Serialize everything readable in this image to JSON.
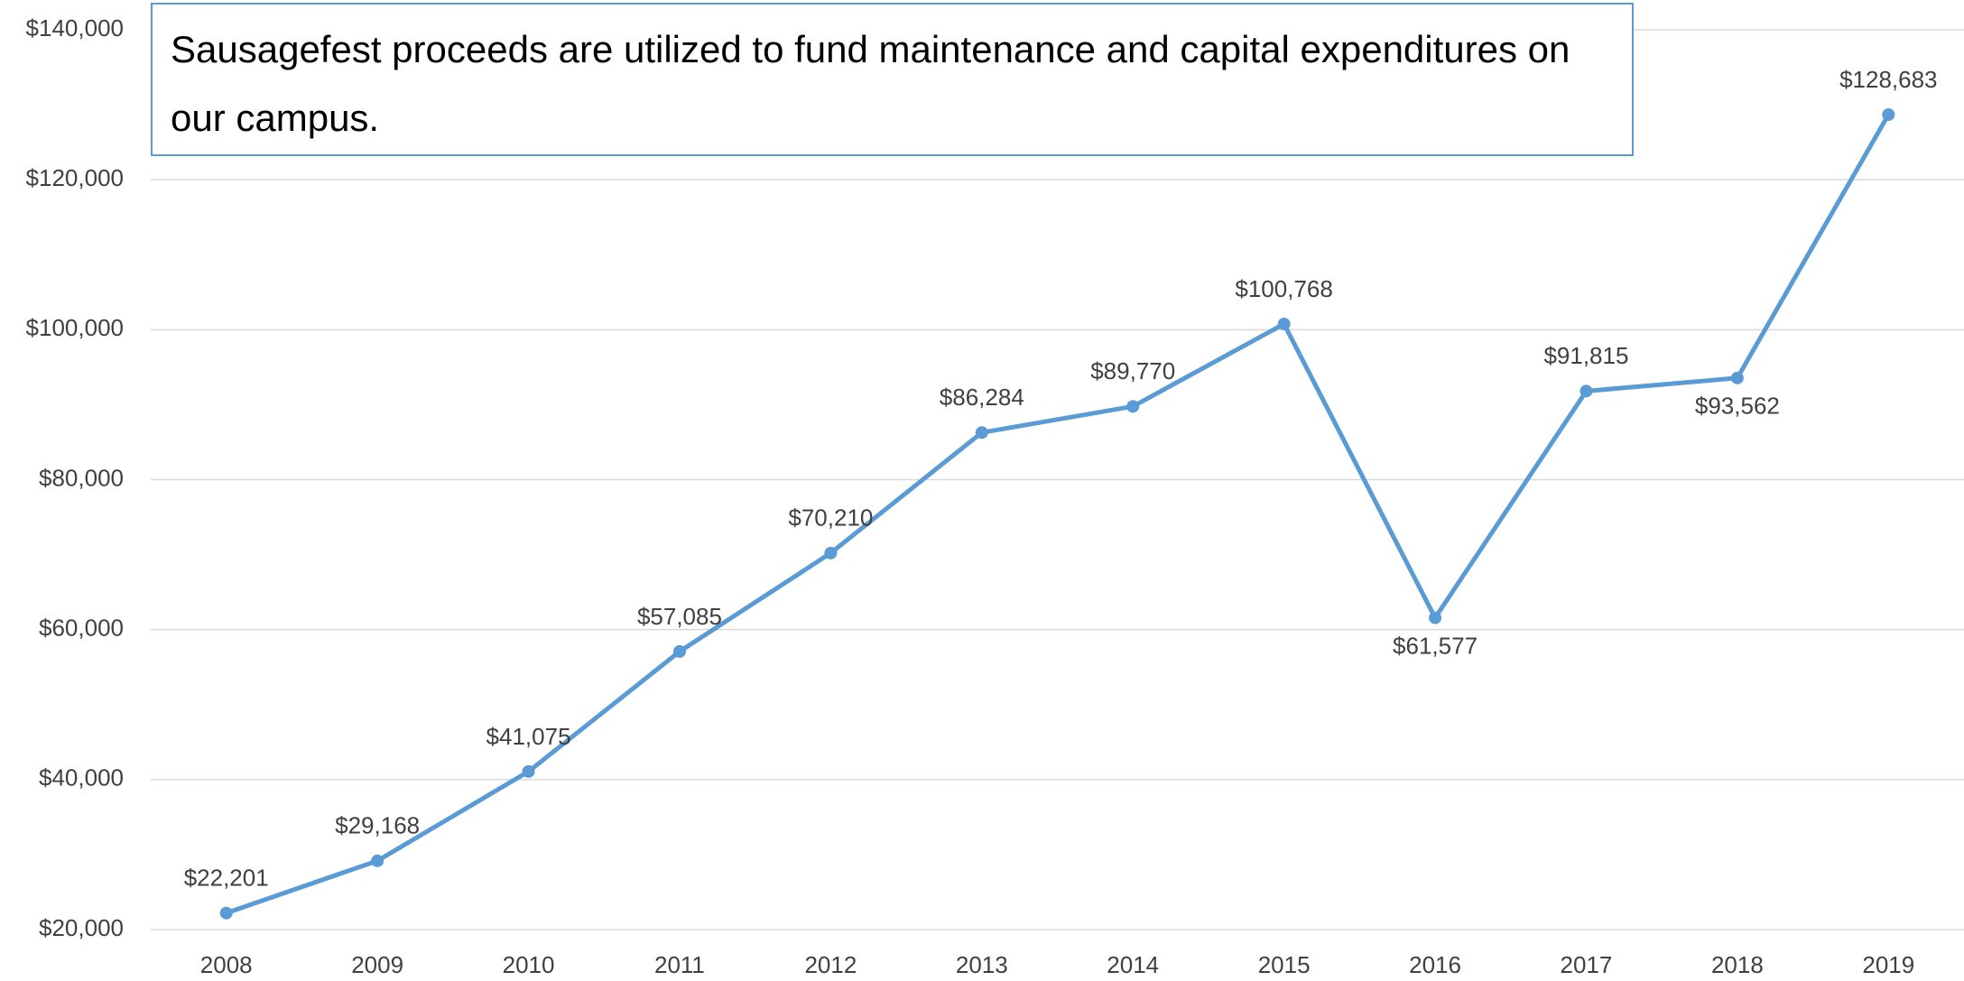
{
  "chart_data": {
    "type": "line",
    "annotation": "Sausagefest proceeds are utilized to fund maintenance and capital expenditures on our campus.",
    "categories": [
      "2008",
      "2009",
      "2010",
      "2011",
      "2012",
      "2013",
      "2014",
      "2015",
      "2016",
      "2017",
      "2018",
      "2019"
    ],
    "series": [
      {
        "color": "#5b9bd5",
        "values": [
          22201,
          29168,
          41075,
          57085,
          70210,
          86284,
          89770,
          100768,
          61577,
          91815,
          93562,
          128683
        ],
        "value_labels": [
          "$22,201",
          "$29,168",
          "$41,075",
          "$57,085",
          "$70,210",
          "$86,284",
          "$89,770",
          "$100,768",
          "$61,577",
          "$91,815",
          "$93,562",
          "$128,683"
        ],
        "label_positions": [
          "above",
          "above",
          "above",
          "above",
          "above",
          "above",
          "above",
          "above",
          "below",
          "above",
          "below",
          "above"
        ]
      }
    ],
    "ylim": [
      20000,
      140000
    ],
    "yticks": [
      {
        "value": 20000,
        "label": "$20,000"
      },
      {
        "value": 40000,
        "label": "$40,000"
      },
      {
        "value": 60000,
        "label": "$60,000"
      },
      {
        "value": 80000,
        "label": "$80,000"
      },
      {
        "value": 100000,
        "label": "$100,000"
      },
      {
        "value": 120000,
        "label": "$120,000"
      },
      {
        "value": 140000,
        "label": "$140,000"
      }
    ],
    "grid": true
  }
}
